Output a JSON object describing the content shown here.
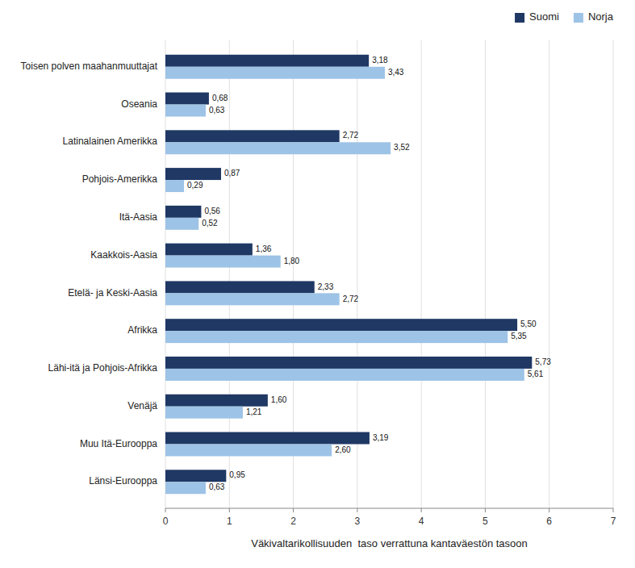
{
  "chart_data": {
    "type": "bar",
    "orientation": "horizontal",
    "categories": [
      "Toisen polven maahanmuuttajat",
      "Oseania",
      "Latinalainen Amerikka",
      "Pohjois-Amerikka",
      "Itä-Aasia",
      "Kaakkois-Aasia",
      "Etelä- ja Keski-Aasia",
      "Afrikka",
      "Lähi-itä ja Pohjois-Afrikka",
      "Venäjä",
      "Muu Itä-Eurooppa",
      "Länsi-Eurooppa"
    ],
    "series": [
      {
        "name": "Suomi",
        "color": "#1F3864",
        "values": [
          3.18,
          0.68,
          2.72,
          0.87,
          0.56,
          1.36,
          2.33,
          5.5,
          5.73,
          1.6,
          3.19,
          0.95
        ],
        "value_labels": [
          "3,18",
          "0,68",
          "2,72",
          "0,87",
          "0,56",
          "1,36",
          "2,33",
          "5,50",
          "5,73",
          "1,60",
          "3,19",
          "0,95"
        ]
      },
      {
        "name": "Norja",
        "color": "#9DC3E6",
        "values": [
          3.43,
          0.63,
          3.52,
          0.29,
          0.52,
          1.8,
          2.72,
          5.35,
          5.61,
          1.21,
          2.6,
          0.63
        ],
        "value_labels": [
          "3,43",
          "0,63",
          "3,52",
          "0,29",
          "0,52",
          "1,80",
          "2,72",
          "5,35",
          "5,61",
          "1,21",
          "2,60",
          "0,63"
        ]
      }
    ],
    "xlabel": "Väkivaltarikollisuuden  taso verrattuna kantaväestön tasoon",
    "xlim": [
      0,
      7
    ],
    "xticks": [
      0,
      1,
      2,
      3,
      4,
      5,
      6,
      7
    ],
    "grid": true,
    "legend": "upper right",
    "data_labels": true
  }
}
